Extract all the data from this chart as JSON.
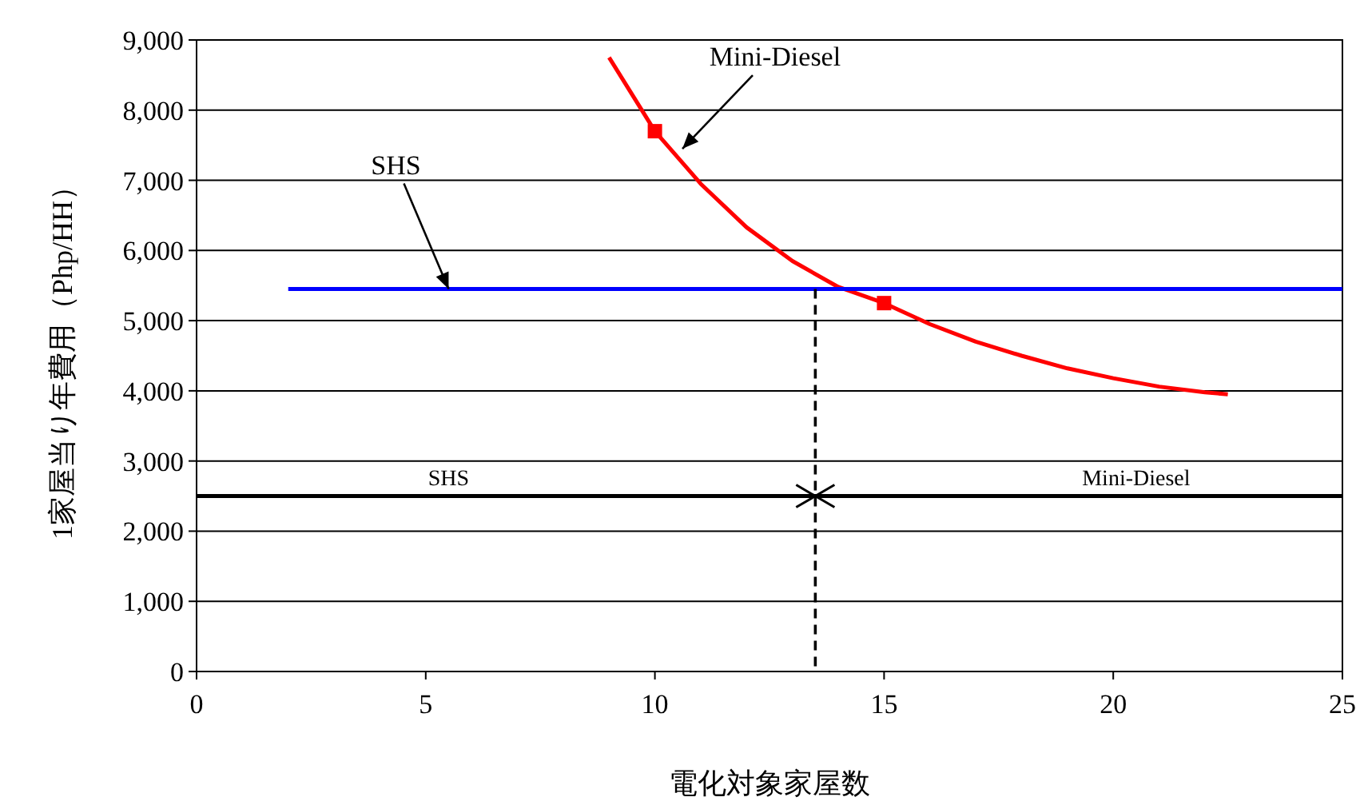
{
  "chart_data": {
    "type": "line",
    "xlabel": "電化対象家屋数",
    "ylabel": "1家屋当り年費用（Php/HH）",
    "xlim": [
      0,
      25
    ],
    "xticks": [
      0,
      5,
      10,
      15,
      20,
      25
    ],
    "ylim": [
      0,
      9000
    ],
    "yticks": [
      0,
      {
        "value": 1000,
        "label": "1,000"
      },
      {
        "value": 2000,
        "label": "2,000"
      },
      {
        "value": 3000,
        "label": "3,000"
      },
      {
        "value": 4000,
        "label": "4,000"
      },
      {
        "value": 5000,
        "label": "5,000"
      },
      {
        "value": 6000,
        "label": "6,000"
      },
      {
        "value": 7000,
        "label": "7,000"
      },
      {
        "value": 8000,
        "label": "8,000"
      },
      {
        "value": 9000,
        "label": "9,000"
      }
    ],
    "grid": "y",
    "series": [
      {
        "color": "#ff0000",
        "x": [
          9,
          10,
          11,
          12,
          13,
          14,
          15,
          16,
          17,
          18,
          19,
          20,
          21,
          22,
          22.5
        ],
        "values": [
          8750,
          7700,
          6950,
          6330,
          5850,
          5480,
          5250,
          4950,
          4700,
          4500,
          4320,
          4180,
          4060,
          3980,
          3950
        ]
      },
      {
        "type": "scatter",
        "marker": "square",
        "color": "#ff0000",
        "x": [
          10,
          15
        ],
        "values": [
          7700,
          5250
        ]
      },
      {
        "color": "#0000ff",
        "x": [
          2,
          25
        ],
        "values": [
          5450,
          5450
        ]
      },
      {
        "color": "#000000",
        "x": [
          0,
          25
        ],
        "values": [
          2500,
          2500
        ]
      },
      {
        "color": "#000000",
        "line_style": "dashed",
        "x": [
          13.5,
          13.5
        ],
        "values": [
          0,
          5450
        ]
      }
    ],
    "annotations": [
      {
        "text": "Mini-Diesel",
        "x": 10.6,
        "y": 7450
      },
      {
        "text": "SHS",
        "x": 5.5,
        "y": 5450
      },
      "SHS",
      "Mini-Diesel"
    ]
  }
}
